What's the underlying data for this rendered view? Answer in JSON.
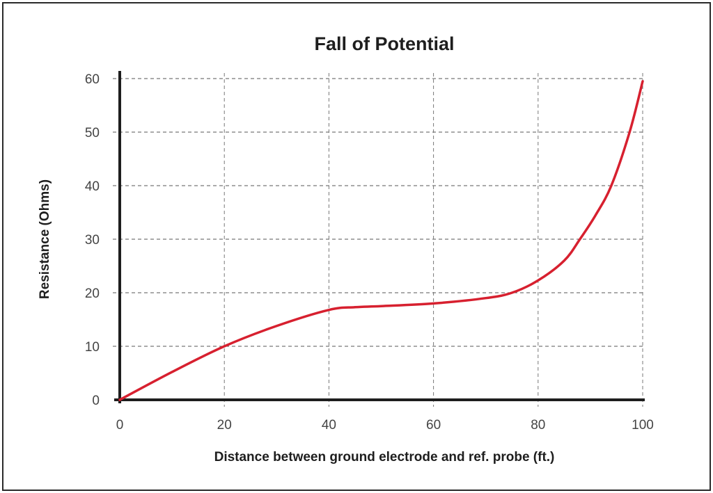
{
  "chart_data": {
    "type": "line",
    "title": "Fall of Potential",
    "xlabel": "Distance between ground electrode and ref. probe (ft.)",
    "ylabel": "Resistance (Ohms)",
    "xlim": [
      0,
      100
    ],
    "ylim": [
      0,
      60
    ],
    "x_ticks": [
      "0",
      "20",
      "40",
      "60",
      "80",
      "100"
    ],
    "y_ticks": [
      "0",
      "10",
      "20",
      "30",
      "40",
      "50",
      "60"
    ],
    "grid": true,
    "legend": null,
    "series": [
      {
        "name": "Resistance",
        "color": "#d7202f",
        "x": [
          0,
          10,
          20,
          30,
          40,
          45,
          50,
          60,
          70,
          75,
          80,
          85,
          88,
          91,
          94,
          97.5,
          100
        ],
        "y": [
          0,
          5.2,
          10,
          13.8,
          16.8,
          17.3,
          17.5,
          18,
          19,
          20,
          22.3,
          26,
          30,
          34.5,
          40,
          50,
          59.5
        ]
      }
    ]
  },
  "colors": {
    "curve": "#d7202f",
    "axis": "#1e1e1e",
    "grid": "#555555",
    "text": "#444444"
  }
}
